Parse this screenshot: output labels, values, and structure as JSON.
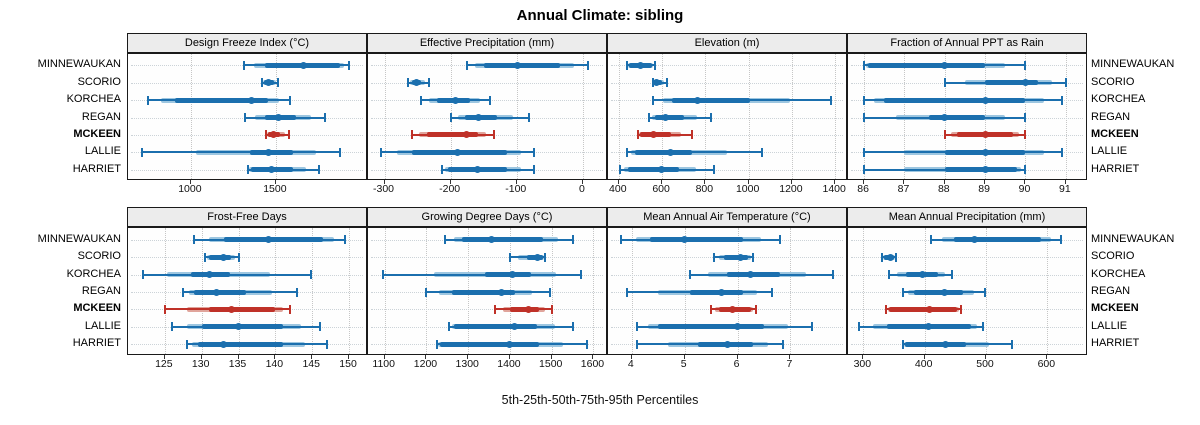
{
  "title": "Annual Climate: sibling",
  "caption": "5th-25th-50th-75th-95th Percentiles",
  "colors": {
    "series_main": "#1b6fae",
    "series_light": "#9dc6e0",
    "highlight_main": "#bf3128",
    "highlight_light": "#e0a49b",
    "strip_bg": "#ececec",
    "panel_border": "#1a1a1a",
    "grid_vertical": "#c6c6c6",
    "grid_horizontal": "#ccd3d8"
  },
  "stations": [
    "MINNEWAUKAN",
    "SCORIO",
    "KORCHEA",
    "REGAN",
    "MCKEEN",
    "LALLIE",
    "HARRIET"
  ],
  "highlight_station": "MCKEEN",
  "chart_data": {
    "type": "interval-dotplot",
    "note": "Each glyph shows 5th-25th-50th-75th-95th percentiles (whisker with caps = 5th-95th, thick band = 25th-75th, dot = median)",
    "percentiles": [
      5,
      25,
      50,
      75,
      95
    ],
    "panels": [
      {
        "title": "Design Freeze Index (°C)",
        "grid_row": 1,
        "grid_col": 1,
        "ticks": [
          1000,
          1500
        ],
        "xlim": [
          630,
          2030
        ],
        "series": {
          "MINNEWAUKAN": [
            1310,
            1435,
            1665,
            1875,
            1930
          ],
          "SCORIO": [
            1420,
            1432,
            1455,
            1487,
            1510
          ],
          "KORCHEA": [
            745,
            905,
            1355,
            1455,
            1580
          ],
          "REGAN": [
            1320,
            1438,
            1515,
            1620,
            1790
          ],
          "MCKEEN": [
            1444,
            1456,
            1483,
            1525,
            1578
          ],
          "LALLIE": [
            710,
            1350,
            1455,
            1600,
            1875
          ],
          "HARRIET": [
            1335,
            1352,
            1475,
            1600,
            1753
          ]
        }
      },
      {
        "title": "Effective Precipitation (mm)",
        "grid_row": 1,
        "grid_col": 2,
        "ticks": [
          -300,
          -200,
          -100,
          0
        ],
        "xlim": [
          -325,
          35
        ],
        "series": {
          "MINNEWAUKAN": [
            -176,
            -150,
            -99,
            -35,
            8
          ],
          "SCORIO": [
            -265,
            -259,
            -252,
            -245,
            -232
          ],
          "KORCHEA": [
            -245,
            -220,
            -193,
            -170,
            -140
          ],
          "REGAN": [
            -200,
            -178,
            -158,
            -130,
            -81
          ],
          "MCKEEN": [
            -259,
            -236,
            -176,
            -159,
            -135
          ],
          "LALLIE": [
            -305,
            -258,
            -189,
            -114,
            -74
          ],
          "HARRIET": [
            -213,
            -204,
            -159,
            -114,
            -74
          ]
        }
      },
      {
        "title": "Elevation (m)",
        "grid_row": 1,
        "grid_col": 3,
        "ticks": [
          400,
          600,
          800,
          1000,
          1200,
          1400
        ],
        "xlim": [
          350,
          1450
        ],
        "series": {
          "MINNEWAUKAN": [
            436,
            447,
            501,
            552,
            568
          ],
          "SCORIO": [
            560,
            566,
            574,
            600,
            622
          ],
          "KORCHEA": [
            560,
            645,
            765,
            1005,
            1380
          ],
          "REGAN": [
            540,
            568,
            618,
            700,
            825
          ],
          "MCKEEN": [
            490,
            500,
            560,
            640,
            736
          ],
          "LALLIE": [
            436,
            475,
            638,
            740,
            1060
          ],
          "HARRIET": [
            405,
            444,
            599,
            677,
            840
          ]
        }
      },
      {
        "title": "Fraction of Annual PPT as Rain",
        "grid_row": 1,
        "grid_col": 4,
        "ticks": [
          86,
          87,
          88,
          89,
          90,
          91
        ],
        "xlim": [
          85.6,
          91.5
        ],
        "series": {
          "MINNEWAUKAN": [
            86.0,
            86.1,
            88.0,
            89.0,
            90.0
          ],
          "SCORIO": [
            88.0,
            89.0,
            90.0,
            90.3,
            91.0
          ],
          "KORCHEA": [
            86.0,
            86.5,
            89.0,
            90.0,
            90.9
          ],
          "REGAN": [
            86.0,
            87.6,
            88.0,
            89.0,
            90.0
          ],
          "MCKEEN": [
            88.0,
            88.3,
            89.0,
            89.7,
            90.0
          ],
          "LALLIE": [
            86.0,
            88.0,
            89.0,
            90.0,
            90.9
          ],
          "HARRIET": [
            86.0,
            88.0,
            89.0,
            89.8,
            90.0
          ]
        }
      },
      {
        "title": "Frost-Free Days",
        "grid_row": 2,
        "grid_col": 1,
        "ticks": [
          125,
          130,
          135,
          140,
          145,
          150
        ],
        "xlim": [
          120,
          152.3
        ],
        "series": {
          "MINNEWAUKAN": [
            129,
            133,
            139,
            146.5,
            149.5
          ],
          "SCORIO": [
            130.5,
            131,
            133,
            134,
            135
          ],
          "KORCHEA": [
            122,
            128.5,
            131,
            133.8,
            144.8
          ],
          "REGAN": [
            127.5,
            129,
            132,
            136,
            143
          ],
          "MCKEEN": [
            125,
            131,
            134,
            140,
            142
          ],
          "LALLIE": [
            126,
            130,
            135,
            141,
            146
          ],
          "HARRIET": [
            128,
            129.5,
            133,
            141,
            147
          ]
        }
      },
      {
        "title": "Growing Degree Days (°C)",
        "grid_row": 2,
        "grid_col": 2,
        "ticks": [
          1100,
          1200,
          1300,
          1400,
          1500,
          1600
        ],
        "xlim": [
          1060,
          1630
        ],
        "series": {
          "MINNEWAUKAN": [
            1245,
            1285,
            1355,
            1480,
            1550
          ],
          "SCORIO": [
            1400,
            1440,
            1465,
            1478,
            1485
          ],
          "KORCHEA": [
            1095,
            1340,
            1405,
            1450,
            1570
          ],
          "REGAN": [
            1200,
            1260,
            1380,
            1412,
            1495
          ],
          "MCKEEN": [
            1365,
            1400,
            1445,
            1470,
            1500
          ],
          "LALLIE": [
            1255,
            1265,
            1410,
            1465,
            1550
          ],
          "HARRIET": [
            1225,
            1232,
            1400,
            1470,
            1585
          ]
        }
      },
      {
        "title": "Mean Annual Air Temperature (°C)",
        "grid_row": 2,
        "grid_col": 3,
        "ticks": [
          4,
          5,
          6,
          7
        ],
        "xlim": [
          3.55,
          8.05
        ],
        "series": {
          "MINNEWAUKAN": [
            3.8,
            4.35,
            5.0,
            6.1,
            6.8
          ],
          "SCORIO": [
            5.55,
            5.75,
            6.05,
            6.2,
            6.3
          ],
          "KORCHEA": [
            5.1,
            5.8,
            6.25,
            6.8,
            7.8
          ],
          "REGAN": [
            3.9,
            5.1,
            5.7,
            6.1,
            6.65
          ],
          "MCKEEN": [
            5.5,
            5.65,
            5.9,
            6.25,
            6.35
          ],
          "LALLIE": [
            4.1,
            4.5,
            6.0,
            6.5,
            7.4
          ],
          "HARRIET": [
            4.1,
            5.25,
            5.8,
            6.3,
            6.85
          ]
        }
      },
      {
        "title": "Mean Annual Precipitation (mm)",
        "grid_row": 2,
        "grid_col": 4,
        "ticks": [
          300,
          400,
          500,
          600
        ],
        "xlim": [
          275,
          663
        ],
        "series": {
          "MINNEWAUKAN": [
            410,
            448,
            482,
            590,
            622
          ],
          "SCORIO": [
            330,
            333,
            344,
            350,
            353
          ],
          "KORCHEA": [
            342,
            369,
            396,
            422,
            444
          ],
          "REGAN": [
            364,
            382,
            432,
            463,
            498
          ],
          "MCKEEN": [
            337,
            342,
            408,
            452,
            460
          ],
          "LALLIE": [
            293,
            338,
            407,
            475,
            495
          ],
          "HARRIET": [
            364,
            368,
            434,
            468,
            543
          ]
        }
      }
    ]
  }
}
